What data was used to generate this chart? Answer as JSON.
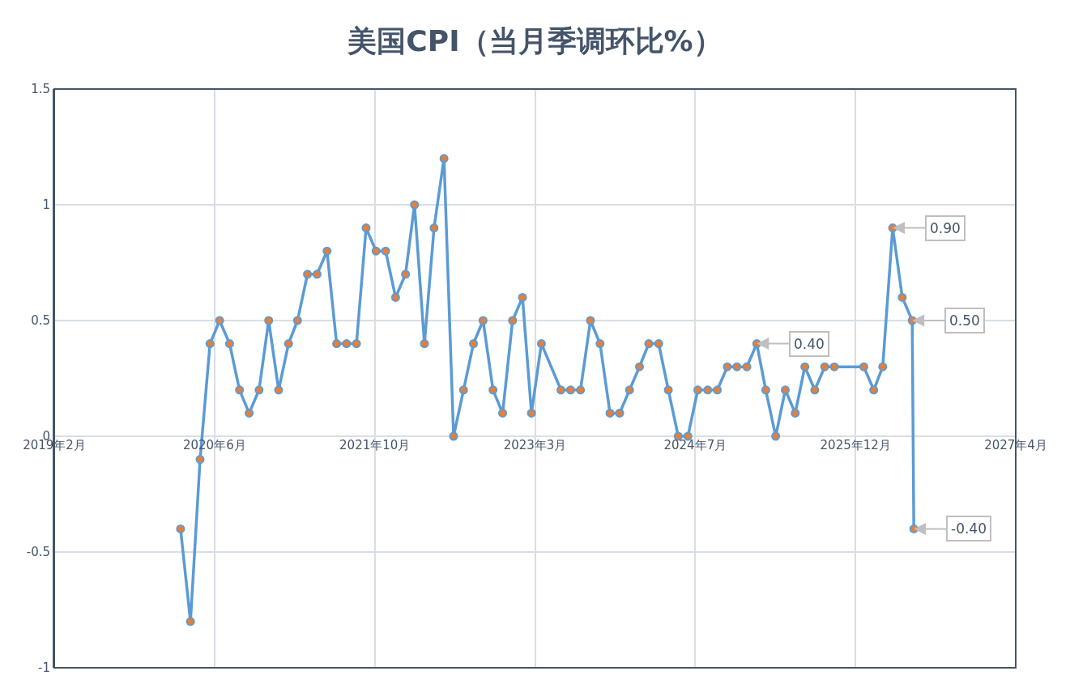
{
  "chart_data": {
    "type": "line",
    "title": "美国CPI（当月季调环比%）",
    "x": [
      "2020-03",
      "2020-04",
      "2020-05",
      "2020-06",
      "2020-07",
      "2020-08",
      "2020-09",
      "2020-10",
      "2020-11",
      "2020-12",
      "2021-01",
      "2021-02",
      "2021-03",
      "2021-04",
      "2021-05",
      "2021-06",
      "2021-07",
      "2021-08",
      "2021-09",
      "2021-10",
      "2021-11",
      "2021-12",
      "2022-01",
      "2022-02",
      "2022-03",
      "2022-04",
      "2022-05",
      "2022-06",
      "2022-07",
      "2022-08",
      "2022-09",
      "2022-10",
      "2022-11",
      "2022-12",
      "2023-01",
      "2023-02",
      "2023-03",
      "2023-04",
      "2023-06",
      "2023-07",
      "2023-08",
      "2023-09",
      "2023-10",
      "2023-11",
      "2023-12",
      "2024-01",
      "2024-02",
      "2024-03",
      "2024-04",
      "2024-05",
      "2024-06",
      "2024-07",
      "2024-08",
      "2024-09",
      "2024-10",
      "2024-11",
      "2024-12",
      "2025-01",
      "2025-02",
      "2025-03",
      "2025-04",
      "2025-05",
      "2025-06",
      "2025-07",
      "2025-08",
      "2025-09",
      "2025-10",
      "2026-01",
      "2026-02",
      "2026-03",
      "2026-04",
      "2026-05",
      "2026-06-01",
      "2026-06-06"
    ],
    "series": [
      {
        "color": "#5b9bd5",
        "colors": [
          "#ed7d31",
          "#ed7d31",
          "#ed7d31",
          "#ed7d31",
          "#ed7d31",
          "#ed7d31",
          "#ed7d31",
          "#ed7d31",
          "#ed7d31",
          "#ed7d31",
          "#ed7d31",
          "#ed7d31",
          "#ed7d31",
          "#ed7d31",
          "#ed7d31",
          "#ed7d31",
          "#ed7d31",
          "#ed7d31",
          "#ed7d31",
          "#ed7d31",
          "#ed7d31",
          "#ed7d31",
          "#ed7d31",
          "#ed7d31",
          "#ed7d31",
          "#ed7d31",
          "#ed7d31",
          "#ed7d31",
          "#ed7d31",
          "#ed7d31",
          "#ed7d31",
          "#ed7d31",
          "#ed7d31",
          "#ed7d31",
          "#ed7d31",
          "#ed7d31",
          "#ed7d31",
          "#ed7d31",
          "#ed7d31",
          "#ed7d31",
          "#ed7d31",
          "#ed7d31",
          "#ed7d31",
          "#ed7d31",
          "#ed7d31",
          "#ed7d31",
          "#ed7d31",
          "#ed7d31",
          "#ed7d31",
          "#ed7d31",
          "#ed7d31",
          "#ed7d31",
          "#ed7d31",
          "#ed7d31",
          "#ed7d31",
          "#ed7d31",
          "#ed7d31",
          "#ed7d31",
          "#ed7d31",
          "#ed7d31",
          "#ed7d31",
          "#ed7d31",
          "#ed7d31",
          "#ed7d31",
          "#ed7d31",
          "#ed7d31",
          "#ed7d31",
          "#ed7d31",
          "#ed7d31",
          "#ed7d31",
          "#ed7d31",
          "#ed7d31",
          "#ed7d31",
          "#ed7d31"
        ],
        "values": [
          -0.4,
          -0.8,
          -0.1,
          0.4,
          0.5,
          0.4,
          0.2,
          0.1,
          0.2,
          0.5,
          0.2,
          0.4,
          0.5,
          0.7,
          0.7,
          0.8,
          0.4,
          0.4,
          0.4,
          0.9,
          0.8,
          0.8,
          0.6,
          0.7,
          1.0,
          0.4,
          0.9,
          1.2,
          0.0,
          0.2,
          0.4,
          0.5,
          0.2,
          0.1,
          0.5,
          0.6,
          0.1,
          0.4,
          0.2,
          0.2,
          0.2,
          0.5,
          0.4,
          0.1,
          0.1,
          0.2,
          0.3,
          0.4,
          0.4,
          0.2,
          0.0,
          0.0,
          0.2,
          0.2,
          0.2,
          0.3,
          0.3,
          0.3,
          0.4,
          0.2,
          0.0,
          0.2,
          0.1,
          0.3,
          0.2,
          0.3,
          0.3,
          0.3,
          0.2,
          0.3,
          0.9,
          0.6,
          0.5,
          -0.4
        ],
        "value_labels": [
          null,
          null,
          null,
          null,
          null,
          null,
          null,
          null,
          null,
          null,
          null,
          null,
          null,
          null,
          null,
          null,
          null,
          null,
          null,
          null,
          null,
          null,
          null,
          null,
          null,
          null,
          null,
          null,
          null,
          null,
          null,
          null,
          null,
          null,
          null,
          null,
          null,
          null,
          null,
          null,
          null,
          null,
          null,
          null,
          null,
          null,
          null,
          null,
          null,
          null,
          null,
          null,
          null,
          null,
          null,
          null,
          null,
          null,
          "0.40",
          null,
          null,
          null,
          null,
          null,
          null,
          null,
          null,
          null,
          null,
          null,
          "0.90",
          null,
          "0.50",
          "-0.40"
        ]
      }
    ],
    "marker": "circle",
    "line_style": "solid",
    "grid": true,
    "xlim": [
      "2019-02-01",
      "2027-04-20"
    ],
    "xticks": [
      {
        "value": "2019-02-01",
        "label": "2019年2月"
      },
      {
        "value": "2020-06-15",
        "label": "2020年6月"
      },
      {
        "value": "2021-10-28",
        "label": "2021年10月"
      },
      {
        "value": "2023-03-12",
        "label": "2023年3月"
      },
      {
        "value": "2024-07-24",
        "label": "2024年7月"
      },
      {
        "value": "2025-12-06",
        "label": "2025年12月"
      },
      {
        "value": "2027-04-20",
        "label": "2027年4月"
      }
    ],
    "ylim": [
      -1,
      1.5
    ],
    "yticks": [
      -1,
      -0.5,
      0,
      0.5,
      1,
      1.5
    ]
  }
}
